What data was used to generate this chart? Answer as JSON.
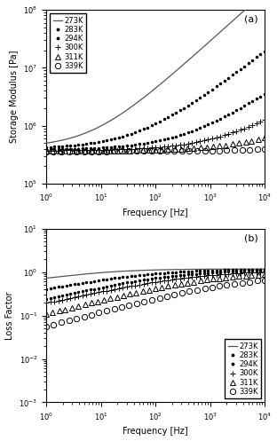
{
  "temperatures": [
    "273K",
    "283K",
    "294K",
    "300K",
    "311K",
    "339K"
  ],
  "xlabel": "Frequency [Hz]",
  "ylabel_a": "Storage Modulus [Pa]",
  "ylabel_b": "Loss Factor",
  "label_a": "(a)",
  "label_b": "(b)",
  "xlim": [
    1,
    10000
  ],
  "ylim_a": [
    100000.0,
    100000000.0
  ],
  "ylim_b": [
    0.001,
    10
  ],
  "bg_color": "#ffffff",
  "series": {
    "273K": {
      "style": "line",
      "color": "#555555"
    },
    "283K": {
      "style": "dot",
      "color": "#000000"
    },
    "294K": {
      "style": "dot",
      "color": "#000000"
    },
    "300K": {
      "style": "plus",
      "color": "#000000"
    },
    "311K": {
      "style": "tri",
      "color": "#000000"
    },
    "339K": {
      "style": "circ",
      "color": "#000000"
    }
  }
}
